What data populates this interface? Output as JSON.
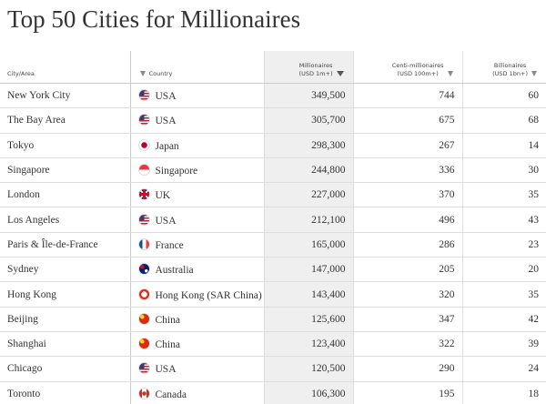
{
  "header": {
    "title": "Top 50 Cities for Millionaires"
  },
  "table": {
    "headers": [
      [
        "City/Area"
      ],
      [
        "Country"
      ],
      [
        "Millionaires",
        "(USD 1m+)"
      ],
      [
        "Centi-millionaires",
        "(USD 100m+)"
      ],
      [
        "Billionaires",
        "(USD 1bn+)"
      ]
    ],
    "rows": [
      [
        "New York City",
        "USA",
        "349,500",
        "744",
        "60"
      ],
      [
        "The Bay Area",
        "USA",
        "305,700",
        "675",
        "68"
      ],
      [
        "Tokyo",
        "Japan",
        "298,300",
        "267",
        "14"
      ],
      [
        "Singapore",
        "Singapore",
        "244,800",
        "336",
        "30"
      ],
      [
        "London",
        "UK",
        "227,000",
        "370",
        "35"
      ],
      [
        "Los Angeles",
        "USA",
        "212,100",
        "496",
        "43"
      ],
      [
        "Paris & Île-de-France",
        "France",
        "165,000",
        "286",
        "23"
      ],
      [
        "Sydney",
        "Australia",
        "147,000",
        "205",
        "20"
      ],
      [
        "Hong Kong",
        "Hong Kong (SAR China)",
        "143,400",
        "320",
        "35"
      ],
      [
        "Beijing",
        "China",
        "125,600",
        "347",
        "42"
      ],
      [
        "Shanghai",
        "China",
        "123,400",
        "322",
        "39"
      ],
      [
        "Chicago",
        "USA",
        "120,500",
        "290",
        "24"
      ],
      [
        "Toronto",
        "Canada",
        "106,300",
        "195",
        "18"
      ]
    ]
  }
}
